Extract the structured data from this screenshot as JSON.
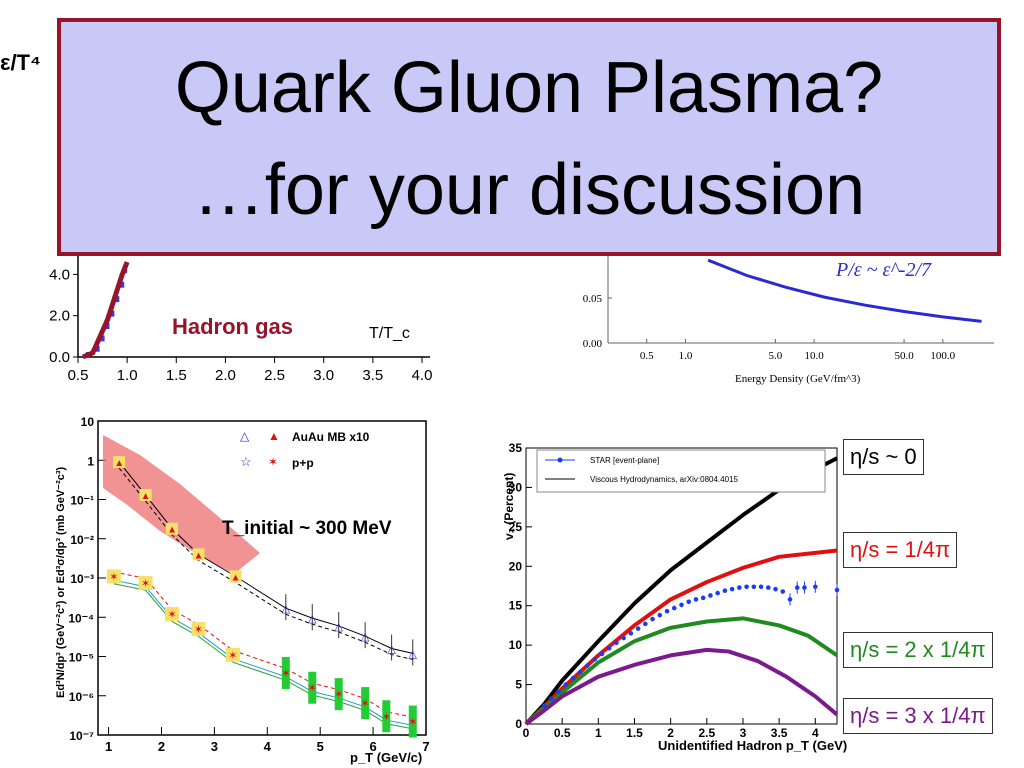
{
  "slide": {
    "title_line1": "Quark Gluon Plasma?",
    "title_line2": "…for your discussion"
  },
  "colors": {
    "title_box_fill": "#c9c9f7",
    "title_box_border": "#96152b",
    "hadron_label": "#96152b",
    "pe_curve": "#2a2ad0",
    "ideal": "#000000",
    "eta_quarter": "#e01010",
    "eta_two_quarter": "#1f8a1f",
    "eta_three_quarter": "#7b1a8f",
    "star_points": "#1c3cf0"
  },
  "chart_data": [
    {
      "id": "lattice-energy-density",
      "type": "line",
      "ylabel": "ε/T⁴",
      "xlabel": "T/T_c",
      "x_ticks": [
        "0.5",
        "1.0",
        "1.5",
        "2.0",
        "2.5",
        "3.0",
        "3.5",
        "4.0"
      ],
      "y_ticks": [
        "0.0",
        "2.0",
        "4.0"
      ],
      "xlim": [
        0.5,
        4.0
      ],
      "ylim": [
        0,
        4.6
      ],
      "annotation": "Hadron gas",
      "series": [
        {
          "x": [
            0.55,
            0.65,
            0.8,
            0.95,
            1.0
          ],
          "y": [
            0.0,
            0.2,
            1.8,
            4.0,
            4.6
          ]
        }
      ],
      "points": [
        {
          "x": 0.6,
          "y": 0.1
        },
        {
          "x": 0.7,
          "y": 0.4
        },
        {
          "x": 0.75,
          "y": 0.9
        },
        {
          "x": 0.8,
          "y": 1.5
        },
        {
          "x": 0.85,
          "y": 2.1
        },
        {
          "x": 0.9,
          "y": 2.8
        },
        {
          "x": 0.95,
          "y": 3.5
        },
        {
          "x": 0.98,
          "y": 4.2
        }
      ]
    },
    {
      "id": "pressure-over-energy",
      "type": "line",
      "xlabel": "Energy Density (GeV/fm^3)",
      "log_x": true,
      "x_ticks": [
        "0.5",
        "1.0",
        "5.0",
        "10.0",
        "50.0",
        "100.0"
      ],
      "y_ticks": [
        "0.00",
        "0.05"
      ],
      "ylim": [
        0,
        0.1
      ],
      "annotation": "P/ε ~ ε^-2/7",
      "series": [
        {
          "x": [
            1.5,
            3,
            6,
            12,
            25,
            50,
            100,
            200
          ],
          "y": [
            0.092,
            0.075,
            0.062,
            0.051,
            0.042,
            0.035,
            0.029,
            0.024
          ]
        }
      ]
    },
    {
      "id": "direct-photon-spectra",
      "type": "scatter",
      "xlabel": "p_T (GeV/c)",
      "ylabel": "Ed³N/dp³ (GeV⁻²c³) or Ed³σ/dp³ (mb GeV⁻²c³)",
      "log_y": true,
      "xlim": [
        0.8,
        7
      ],
      "ylim": [
        1e-07,
        10
      ],
      "x_ticks": [
        "1",
        "2",
        "3",
        "4",
        "5",
        "6",
        "7"
      ],
      "y_ticks": [
        "10⁻⁷",
        "10⁻⁶",
        "10⁻⁵",
        "10⁻⁴",
        "10⁻³",
        "10⁻²",
        "10⁻¹",
        "1",
        "10"
      ],
      "legend": [
        "AuAu MB x10",
        "p+p"
      ],
      "annotation": "T_initial ~ 300 MeV",
      "series": [
        {
          "name": "AuAu MB x10",
          "x": [
            1.2,
            1.7,
            2.2,
            2.7,
            3.4,
            4.35,
            4.85,
            5.35,
            5.85,
            6.35,
            6.75
          ],
          "y": [
            0.9,
            0.13,
            0.018,
            0.004,
            0.0011,
            0.00017,
            9.5e-05,
            6e-05,
            3.3e-05,
            1.6e-05,
            1.2e-05
          ]
        },
        {
          "name": "p+p",
          "x": [
            1.1,
            1.7,
            2.2,
            2.7,
            3.35,
            4.35,
            4.85,
            5.35,
            5.85,
            6.25,
            6.75
          ],
          "y": [
            0.0011,
            0.00075,
            0.00012,
            5e-05,
            1.1e-05,
            3.8e-06,
            1.6e-06,
            1.1e-06,
            6.5e-07,
            3e-07,
            2.2e-07
          ]
        }
      ]
    },
    {
      "id": "elliptic-flow-v2",
      "type": "line",
      "xlabel": "Unidentified Hadron p_T (GeV)",
      "ylabel": "v₂ (Percent)",
      "xlim": [
        0,
        4.3
      ],
      "ylim": [
        0,
        35
      ],
      "x_ticks": [
        "0",
        "0.5",
        "1",
        "1.5",
        "2",
        "2.5",
        "3",
        "3.5",
        "4"
      ],
      "y_ticks": [
        "0",
        "5",
        "10",
        "15",
        "20",
        "25",
        "30",
        "35"
      ],
      "legend": [
        "STAR [event-plane]",
        "Viscous Hydrodynamics, arXiv:0804.4015"
      ],
      "labels": [
        "η/s ~ 0",
        "η/s = 1/4π",
        "η/s = 2 x 1/4π",
        "η/s = 3 x 1/4π"
      ],
      "series": [
        {
          "name": "η/s ~ 0",
          "x": [
            0,
            0.25,
            0.5,
            1,
            1.5,
            2,
            2.5,
            3,
            3.5,
            4,
            4.3
          ],
          "y": [
            0,
            2.5,
            5.5,
            10.5,
            15.3,
            19.5,
            23,
            26.5,
            29.7,
            32.3,
            33.7
          ]
        },
        {
          "name": "η/s = 1/4π",
          "x": [
            0,
            0.25,
            0.5,
            1,
            1.5,
            2,
            2.5,
            3,
            3.5,
            4,
            4.3
          ],
          "y": [
            0,
            2.2,
            4.5,
            8.7,
            12.5,
            15.8,
            18,
            19.8,
            21.2,
            21.7,
            22
          ]
        },
        {
          "name": "η/s = 2 x 1/4π",
          "x": [
            0,
            0.25,
            0.5,
            1,
            1.5,
            2,
            2.5,
            3,
            3.5,
            3.9,
            4.3
          ],
          "y": [
            0,
            2,
            4,
            7.8,
            10.5,
            12.2,
            13,
            13.4,
            12.5,
            11.2,
            8.7
          ]
        },
        {
          "name": "η/s = 3 x 1/4π",
          "x": [
            0,
            0.25,
            0.5,
            1,
            1.5,
            2,
            2.5,
            2.8,
            3.2,
            3.6,
            4,
            4.3
          ],
          "y": [
            0,
            1.7,
            3.5,
            6,
            7.5,
            8.7,
            9.4,
            9.2,
            8,
            6,
            3.5,
            1.2
          ]
        },
        {
          "name": "STAR [event-plane]",
          "x": [
            0.25,
            0.35,
            0.45,
            0.55,
            0.65,
            0.75,
            0.85,
            0.95,
            1.05,
            1.15,
            1.25,
            1.35,
            1.45,
            1.55,
            1.65,
            1.75,
            1.85,
            1.95,
            2.05,
            2.15,
            2.25,
            2.35,
            2.45,
            2.55,
            2.65,
            2.75,
            2.85,
            2.95,
            3.05,
            3.15,
            3.25,
            3.35,
            3.45,
            3.55,
            3.65,
            3.75,
            3.85,
            4.0,
            4.3
          ],
          "y": [
            2.3,
            3.2,
            4.1,
            5,
            5.8,
            6.6,
            7.4,
            8.2,
            8.9,
            9.6,
            10.3,
            10.9,
            11.5,
            12.1,
            12.7,
            13.3,
            13.8,
            14.3,
            14.7,
            15.1,
            15.5,
            15.8,
            16,
            16.3,
            16.6,
            16.9,
            17.1,
            17.3,
            17.4,
            17.4,
            17.4,
            17.3,
            17.1,
            16.8,
            15.8,
            17.3,
            17.3,
            17.4,
            17
          ]
        }
      ]
    }
  ]
}
